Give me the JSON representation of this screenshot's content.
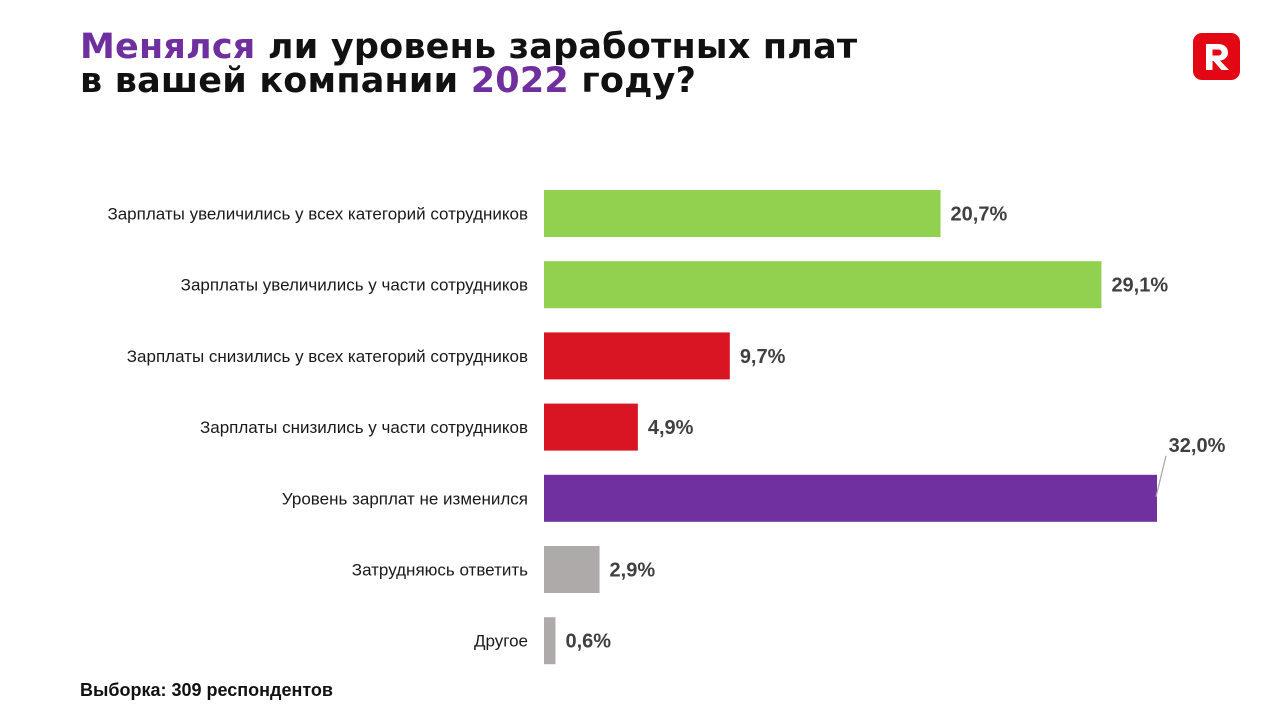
{
  "title": {
    "line1_accent": "Менялся",
    "line1_rest": " ли уровень заработных плат",
    "line2_start": "в вашей компании ",
    "line2_accent": "2022",
    "line2_end": " году?"
  },
  "logo": {
    "icon": "r-logo-icon",
    "color": "#e30613"
  },
  "footer": {
    "sample": "Выборка: 309 респондентов"
  },
  "colors": {
    "accent": "#6f2f9e",
    "green": "#92d050",
    "red": "#d91523",
    "purple": "#7030a0",
    "gray": "#aeaaaa"
  },
  "chart_data": {
    "type": "bar",
    "orientation": "horizontal",
    "categories": [
      "Зарплаты увеличились у всех категорий сотрудников",
      "Зарплаты увеличились у части сотрудников",
      "Зарплаты снизились у всех категорий сотрудников",
      "Зарплаты снизились у части сотрудников",
      "Уровень зарплат не изменился",
      "Затрудняюсь ответить",
      "Другое"
    ],
    "values": [
      20.7,
      29.1,
      9.7,
      4.9,
      32.0,
      2.9,
      0.6
    ],
    "value_labels": [
      "20,7%",
      "29,1%",
      "9,7%",
      "4,9%",
      "32,0%",
      "2,9%",
      "0,6%"
    ],
    "bar_colors": [
      "#92d050",
      "#92d050",
      "#d91523",
      "#d91523",
      "#7030a0",
      "#aeaaaa",
      "#aeaaaa"
    ],
    "xlim": [
      0,
      32.0
    ],
    "grid": false,
    "legend": false
  }
}
